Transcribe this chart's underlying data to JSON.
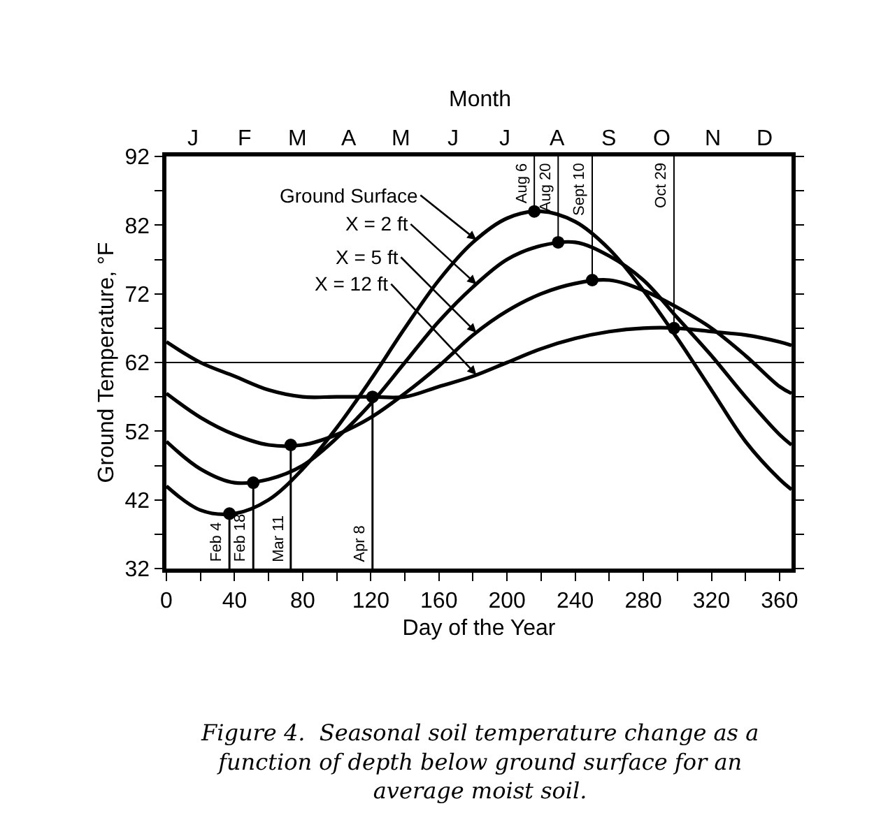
{
  "chart_data": {
    "type": "line",
    "xlabel": "Day of the Year",
    "ylabel": "Ground Temperature, °F",
    "x2label": "Month",
    "x": [
      0,
      20,
      40,
      60,
      80,
      100,
      120,
      140,
      160,
      180,
      200,
      220,
      240,
      260,
      280,
      300,
      320,
      340,
      360,
      367
    ],
    "series": [
      {
        "name": "Ground Surface",
        "color": "#000000",
        "values": [
          44,
          40.5,
          40,
          42,
          46.5,
          52.5,
          59.5,
          67,
          74,
          79.5,
          83,
          84,
          82.5,
          78.5,
          72.5,
          65.5,
          58,
          50.5,
          45,
          43.5
        ]
      },
      {
        "name": "X = 2 ft",
        "color": "#000000",
        "values": [
          50.5,
          46.5,
          44.5,
          45,
          47,
          51,
          56,
          62,
          68,
          73,
          77,
          79,
          79.5,
          77.5,
          74,
          68.5,
          63,
          57,
          51.5,
          50
        ]
      },
      {
        "name": "X = 5 ft",
        "color": "#000000",
        "values": [
          57.5,
          54,
          51.5,
          50,
          50,
          51.5,
          54,
          57.5,
          61.5,
          66,
          69.5,
          72,
          73.5,
          74,
          72.5,
          70,
          67,
          63,
          58.5,
          57.5
        ]
      },
      {
        "name": "X = 12 ft",
        "color": "#000000",
        "values": [
          65,
          62,
          60,
          58,
          57,
          57,
          57,
          57,
          58.5,
          60,
          62,
          64,
          65.5,
          66.5,
          67,
          67,
          66.5,
          66,
          65,
          64.5
        ]
      }
    ],
    "xlim": [
      0,
      367
    ],
    "xticks": [
      0,
      {
        "value": 20,
        "label": null
      },
      40,
      {
        "value": 60,
        "label": null
      },
      80,
      {
        "value": 100,
        "label": null
      },
      120,
      {
        "value": 140,
        "label": null
      },
      160,
      {
        "value": 180,
        "label": null
      },
      200,
      {
        "value": 220,
        "label": null
      },
      240,
      {
        "value": 260,
        "label": null
      },
      280,
      {
        "value": 300,
        "label": null
      },
      320,
      {
        "value": 340,
        "label": null
      },
      360
    ],
    "ylim": [
      32,
      92
    ],
    "yticks": [
      32,
      {
        "value": 37,
        "label": null
      },
      42,
      {
        "value": 47,
        "label": null
      },
      52,
      {
        "value": 57,
        "label": null
      },
      62,
      {
        "value": 67,
        "label": null
      },
      72,
      {
        "value": 77,
        "label": null
      },
      82,
      {
        "value": 87,
        "label": null
      },
      92
    ],
    "ref_lines": [
      {
        "axis": "y",
        "value": 62
      }
    ],
    "annotations": [
      "J",
      "F",
      "M",
      "A",
      "M",
      "J",
      "J",
      "A",
      "S",
      "O",
      "N",
      "D",
      {
        "text": "Feb 4",
        "x": 37,
        "y": 40
      },
      {
        "text": "Feb 18",
        "x": 51,
        "y": 44.5
      },
      {
        "text": "Mar 11",
        "x": 73,
        "y": 50
      },
      {
        "text": "Apr 8",
        "x": 121,
        "y": 57
      },
      {
        "text": "Aug 6",
        "x": 216,
        "y": 84
      },
      {
        "text": "Aug 20",
        "x": 230,
        "y": 79.5
      },
      {
        "text": "Sept 10",
        "x": 250,
        "y": 74
      },
      {
        "text": "Oct 29",
        "x": 298,
        "y": 67
      },
      "Figure 4.  Seasonal soil temperature change as a function of depth below ground surface for an average moist soil."
    ],
    "grid": false,
    "legend": false,
    "line_style": "solid"
  }
}
